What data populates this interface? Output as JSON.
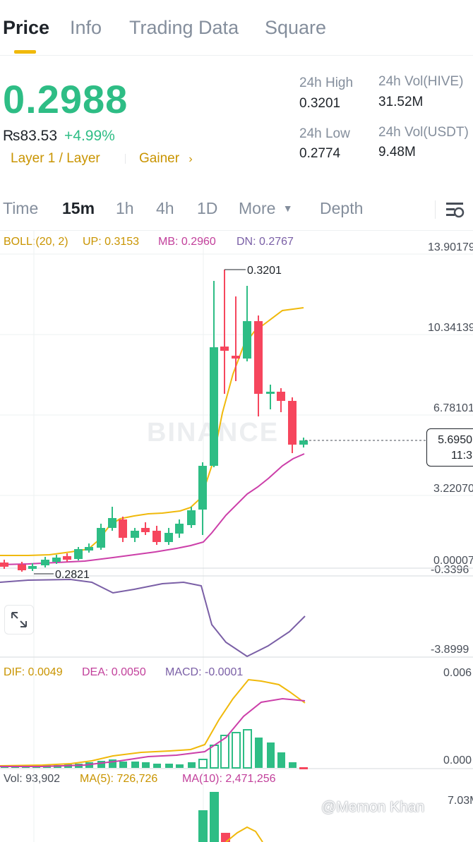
{
  "tabs": [
    "Price",
    "Info",
    "Trading Data",
    "Square"
  ],
  "header": {
    "price": "0.2988",
    "fiat_price": "₨83.53",
    "change": "+4.99%",
    "tag_category": "Layer 1 / Layer",
    "tag_gainer": "Gainer",
    "stats": {
      "high_label": "24h High",
      "high_value": "0.3201",
      "vol_base_label": "24h Vol(HIVE)",
      "vol_base_value": "31.52M",
      "low_label": "24h Low",
      "low_value": "0.2774",
      "vol_quote_label": "24h Vol(USDT)",
      "vol_quote_value": "9.48M"
    },
    "colors": {
      "up": "#2ebd85",
      "down": "#f6465d",
      "accent": "#f0b90b"
    }
  },
  "timeframes": {
    "time": "Time",
    "m15": "15m",
    "h1": "1h",
    "h4": "4h",
    "d1": "1D",
    "more": "More",
    "depth": "Depth",
    "selected": "15m"
  },
  "indicators": {
    "boll": {
      "label": "BOLL:(20, 2)",
      "up": "UP: 0.3153",
      "mb": "MB: 0.2960",
      "dn": "DN: 0.2767"
    },
    "macd": {
      "dif": "DIF: 0.0049",
      "dea": "DEA: 0.0050",
      "macd": "MACD: -0.0001"
    },
    "vol": {
      "vol": "Vol: 93,902",
      "ma5": "MA(5): 726,726",
      "ma10": "MA(10): 2,471,256"
    }
  },
  "axis": {
    "main": [
      "13.90179",
      "10.34139",
      "6.78101",
      "3.22070",
      "0.00007"
    ],
    "sub": [
      "-0.3396",
      "-3.8999"
    ],
    "macd": [
      "0.006",
      "0.000"
    ],
    "vol": [
      "7.03M"
    ]
  },
  "annotations": {
    "high": "0.3201",
    "low": "0.2821",
    "current_value": "5.6950",
    "current_time": "11:3"
  },
  "watermark": "@Memon Khan",
  "logo_text": "BINANCE"
}
